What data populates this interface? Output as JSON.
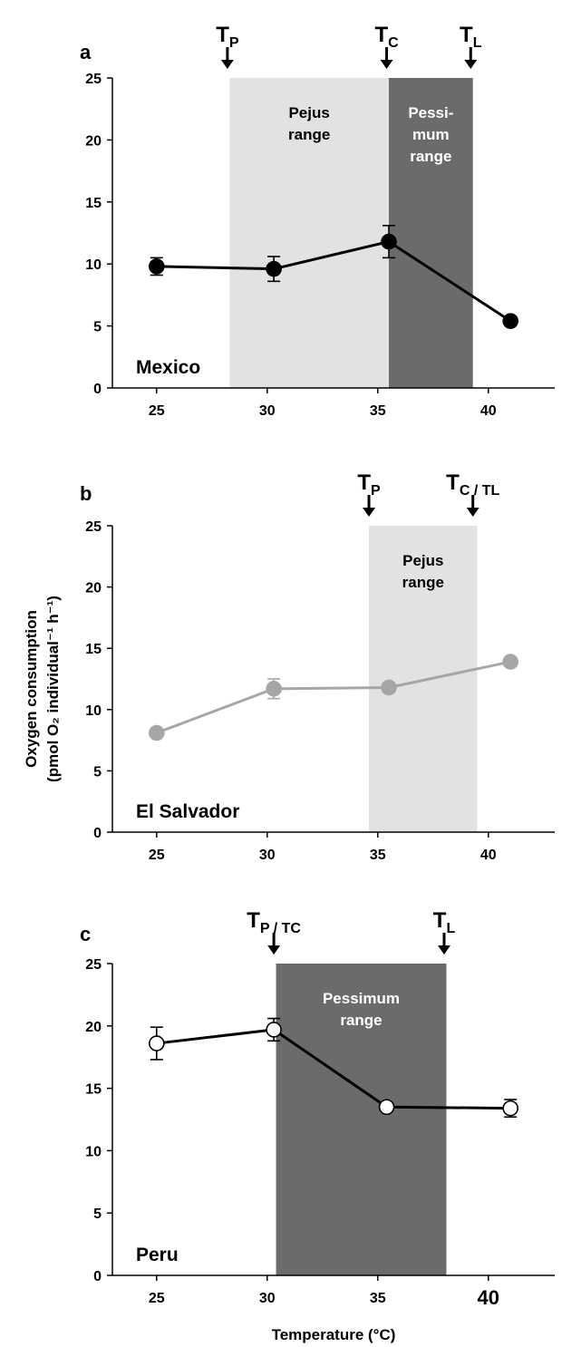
{
  "chart_data": [
    {
      "panel": "a",
      "type": "line",
      "x": [
        25,
        30.3,
        35.5,
        41
      ],
      "y": [
        9.8,
        9.6,
        11.8,
        5.4
      ],
      "yerr": [
        0.7,
        1.0,
        1.3,
        0.3
      ],
      "xlim": [
        23,
        43
      ],
      "ylim": [
        0,
        25
      ],
      "xticks": [
        "25",
        "30",
        "35",
        "40"
      ],
      "yticks": [
        "0",
        "5",
        "10",
        "15",
        "20",
        "25"
      ],
      "series_color": "#000000",
      "marker_fill": "#000000",
      "label": "Mexico",
      "regions": [
        {
          "label_lines": [
            "Pejus",
            "range"
          ],
          "x0": 28.3,
          "x1": 35.5,
          "fill": "#e2e2e2",
          "text_color": "#000000"
        },
        {
          "label_lines": [
            "Pessi-",
            "mum",
            "range"
          ],
          "x0": 35.5,
          "x1": 39.3,
          "fill": "#6b6b6b",
          "text_color": "#ffffff"
        }
      ],
      "markers": [
        {
          "main": "T",
          "sub": "P",
          "x": 28.2
        },
        {
          "main": "T",
          "sub": "C",
          "x": 35.4
        },
        {
          "main": "T",
          "sub": "L",
          "x": 39.2
        }
      ]
    },
    {
      "panel": "b",
      "type": "line",
      "x": [
        25,
        30.3,
        35.5,
        41
      ],
      "y": [
        8.1,
        11.7,
        11.8,
        13.9
      ],
      "yerr": [
        0.25,
        0.8,
        0.3,
        0.3
      ],
      "xlim": [
        23,
        43
      ],
      "ylim": [
        0,
        25
      ],
      "xticks": [
        "25",
        "30",
        "35",
        "40"
      ],
      "yticks": [
        "0",
        "5",
        "10",
        "15",
        "20",
        "25"
      ],
      "series_color": "#a6a6a6",
      "marker_fill": "#a6a6a6",
      "label": "El Salvador",
      "regions": [
        {
          "label_lines": [
            "Pejus",
            "range"
          ],
          "x0": 34.6,
          "x1": 39.5,
          "fill": "#e2e2e2",
          "text_color": "#000000"
        }
      ],
      "markers": [
        {
          "main": "T",
          "sub": "P",
          "x": 34.6
        },
        {
          "main": "T",
          "sub": "C / T",
          "sub2": "L",
          "x": 39.3
        }
      ]
    },
    {
      "panel": "c",
      "type": "line",
      "x": [
        25,
        30.3,
        35.4,
        41
      ],
      "y": [
        18.6,
        19.7,
        13.5,
        13.4
      ],
      "yerr": [
        1.3,
        0.9,
        0.3,
        0.7
      ],
      "xlim": [
        23,
        43
      ],
      "ylim": [
        0,
        25
      ],
      "xticks": [
        "25",
        "30",
        "35",
        "40"
      ],
      "yticks": [
        "0",
        "5",
        "10",
        "15",
        "20",
        "25"
      ],
      "series_color": "#000000",
      "marker_fill": "#ffffff",
      "label": "Peru",
      "regions": [
        {
          "label_lines": [
            "Pessimum",
            "range"
          ],
          "x0": 30.4,
          "x1": 38.1,
          "fill": "#6b6b6b",
          "text_color": "#ffffff"
        }
      ],
      "markers": [
        {
          "main": "T",
          "sub": "P / T",
          "sub2": "C",
          "x": 30.3
        },
        {
          "main": "T",
          "sub": "L",
          "x": 38.0
        }
      ],
      "xlabel": "Temperature (°C)"
    }
  ],
  "ylabel_line1": "Oxygen consumption",
  "ylabel_line2": "(pmol O₂ individual⁻¹ h⁻¹)"
}
